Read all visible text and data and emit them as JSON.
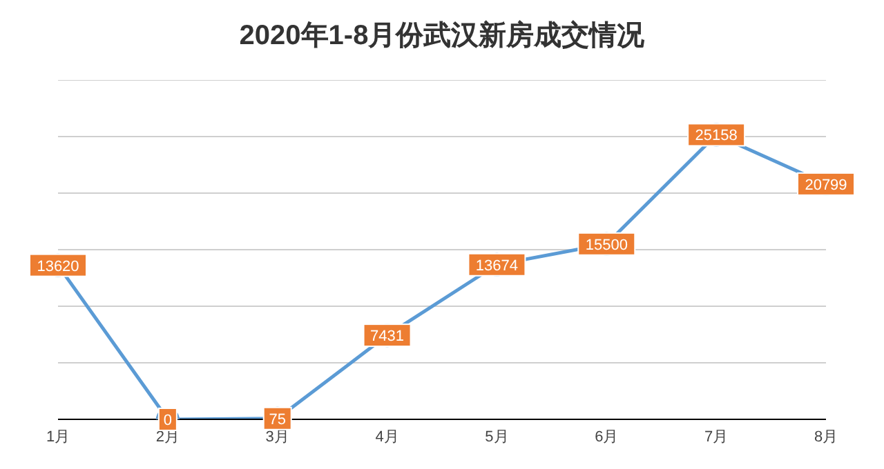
{
  "chart_data": {
    "type": "line",
    "title": "2020年1-8月份武汉新房成交情况",
    "categories": [
      "1月",
      "2月",
      "3月",
      "4月",
      "5月",
      "6月",
      "7月",
      "8月"
    ],
    "series": [
      {
        "color": "#5b9bd5",
        "values": [
          13620,
          0,
          75,
          7431,
          13674,
          15500,
          25158,
          20799
        ]
      }
    ],
    "ylim": [
      0,
      30000
    ],
    "yticks": [
      {
        "value": 0,
        "label": null
      },
      {
        "value": 5000,
        "label": null
      },
      {
        "value": 10000,
        "label": null
      },
      {
        "value": 15000,
        "label": null
      },
      {
        "value": 20000,
        "label": null
      },
      {
        "value": 25000,
        "label": null
      },
      {
        "value": 30000,
        "label": null
      }
    ],
    "tick_labels": "x",
    "grid": "y",
    "legend": false,
    "marker": "circle",
    "line_style": "solid",
    "data_labels": true
  }
}
